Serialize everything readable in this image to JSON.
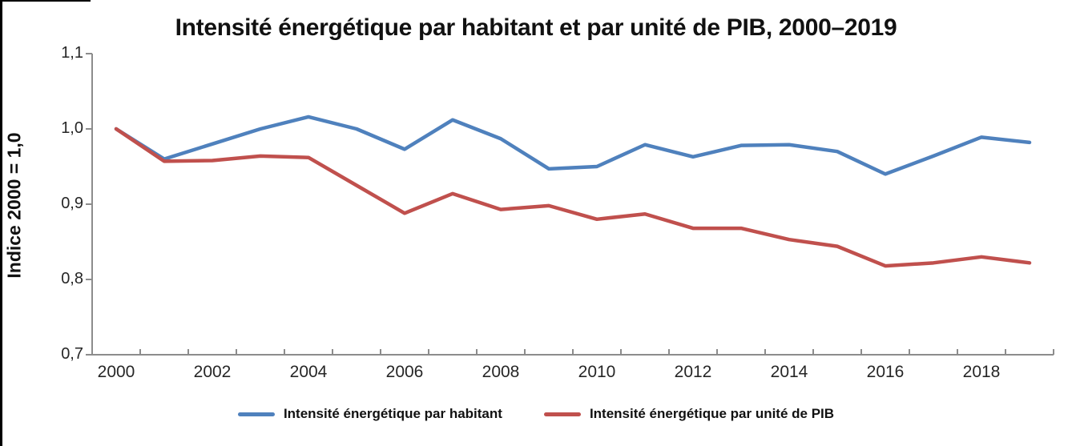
{
  "title": "Intensité énergétique par habitant et par unité de PIB, 2000–2019",
  "y_axis": {
    "label": "Indice 2000 = 1,0",
    "tick_labels": [
      "1,1",
      "1,0",
      "0,9",
      "0,8",
      "0,7"
    ],
    "tick_values": [
      1.1,
      1.0,
      0.9,
      0.8,
      0.7
    ],
    "min": 0.7,
    "max": 1.1
  },
  "x_axis": {
    "visible_labels": [
      "2000",
      "2002",
      "2004",
      "2006",
      "2008",
      "2010",
      "2012",
      "2014",
      "2016",
      "2018"
    ],
    "label_interval": 2
  },
  "legend": [
    {
      "label": "Intensité énergétique par habitant",
      "color": "#4F81BD"
    },
    {
      "label": "Intensité énergétique par unité de PIB",
      "color": "#C0504D"
    }
  ],
  "colors": {
    "axis": "#8C8C8C",
    "series_habitant": "#4F81BD",
    "series_pib": "#C0504D",
    "text": "#262626"
  },
  "chart_data": {
    "type": "line",
    "title": "Intensité énergétique par habitant et par unité de PIB, 2000–2019",
    "xlabel": "",
    "ylabel": "Indice 2000 = 1,0",
    "ylim": [
      0.7,
      1.1
    ],
    "y_ticks": [
      0.7,
      0.8,
      0.9,
      1.0,
      1.1
    ],
    "grid": false,
    "legend_position": "bottom",
    "x": [
      2000,
      2001,
      2002,
      2003,
      2004,
      2005,
      2006,
      2007,
      2008,
      2009,
      2010,
      2011,
      2012,
      2013,
      2014,
      2015,
      2016,
      2017,
      2018,
      2019
    ],
    "series": [
      {
        "name": "Intensité énergétique par habitant",
        "color": "#4F81BD",
        "values": [
          1.0,
          0.96,
          0.98,
          1.0,
          1.016,
          1.0,
          0.973,
          1.012,
          0.987,
          0.947,
          0.95,
          0.979,
          0.963,
          0.978,
          0.979,
          0.97,
          0.94,
          0.964,
          0.989,
          0.982
        ]
      },
      {
        "name": "Intensité énergétique par unité de PIB",
        "color": "#C0504D",
        "values": [
          1.0,
          0.957,
          0.958,
          0.964,
          0.962,
          0.925,
          0.888,
          0.914,
          0.893,
          0.898,
          0.88,
          0.887,
          0.868,
          0.868,
          0.853,
          0.844,
          0.818,
          0.822,
          0.83,
          0.822
        ]
      }
    ]
  }
}
